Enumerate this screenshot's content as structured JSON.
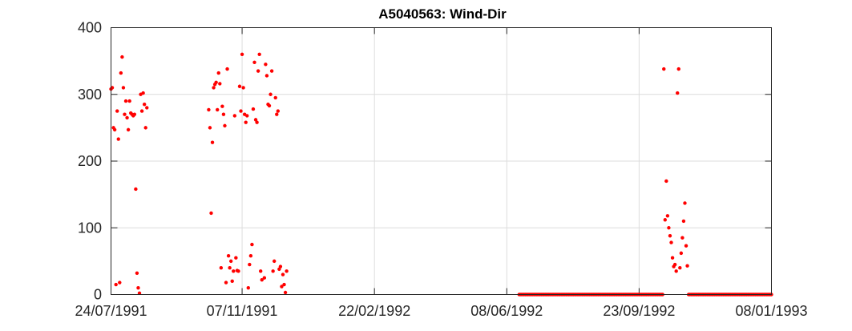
{
  "chart_data": {
    "type": "scatter",
    "title": "A5040563: Wind-Dir",
    "xlabel": "",
    "ylabel": "",
    "x_axis": {
      "type": "date",
      "range": [
        "1991-07-24",
        "1993-01-08"
      ],
      "ticks": [
        "1991-07-24",
        "1991-11-07",
        "1992-02-22",
        "1992-06-08",
        "1992-09-23",
        "1993-01-08"
      ],
      "tick_labels": [
        "24/07/1991",
        "07/11/1991",
        "22/02/1992",
        "08/06/1992",
        "23/09/1992",
        "08/01/1993"
      ]
    },
    "y_axis": {
      "range": [
        0,
        400
      ],
      "ticks": [
        0,
        100,
        200,
        300,
        400
      ],
      "tick_labels": [
        "0",
        "100",
        "200",
        "300",
        "400"
      ]
    },
    "grid": true,
    "marker_color": "#ff0000",
    "series": [
      {
        "points": [
          [
            "1991-07-24",
            308
          ],
          [
            "1991-07-25",
            310
          ],
          [
            "1991-07-26",
            250
          ],
          [
            "1991-07-27",
            247
          ],
          [
            "1991-07-28",
            15
          ],
          [
            "1991-07-29",
            275
          ],
          [
            "1991-07-30",
            233
          ],
          [
            "1991-07-31",
            18
          ],
          [
            "1991-08-01",
            332
          ],
          [
            "1991-08-02",
            356
          ],
          [
            "1991-08-03",
            310
          ],
          [
            "1991-08-04",
            270
          ],
          [
            "1991-08-05",
            290
          ],
          [
            "1991-08-06",
            265
          ],
          [
            "1991-08-07",
            247
          ],
          [
            "1991-08-08",
            290
          ],
          [
            "1991-08-09",
            272
          ],
          [
            "1991-08-10",
            270
          ],
          [
            "1991-08-11",
            268
          ],
          [
            "1991-08-12",
            270
          ],
          [
            "1991-08-13",
            158
          ],
          [
            "1991-08-14",
            32
          ],
          [
            "1991-08-15",
            10
          ],
          [
            "1991-08-16",
            2
          ],
          [
            "1991-08-17",
            300
          ],
          [
            "1991-08-18",
            275
          ],
          [
            "1991-08-19",
            302
          ],
          [
            "1991-08-20",
            285
          ],
          [
            "1991-08-21",
            250
          ],
          [
            "1991-08-22",
            280
          ],
          [
            "1991-10-11",
            277
          ],
          [
            "1991-10-12",
            250
          ],
          [
            "1991-10-13",
            122
          ],
          [
            "1991-10-14",
            228
          ],
          [
            "1991-10-15",
            310
          ],
          [
            "1991-10-16",
            315
          ],
          [
            "1991-10-17",
            318
          ],
          [
            "1991-10-18",
            277
          ],
          [
            "1991-10-19",
            332
          ],
          [
            "1991-10-20",
            316
          ],
          [
            "1991-10-21",
            40
          ],
          [
            "1991-10-22",
            282
          ],
          [
            "1991-10-23",
            270
          ],
          [
            "1991-10-24",
            253
          ],
          [
            "1991-10-25",
            18
          ],
          [
            "1991-10-26",
            338
          ],
          [
            "1991-10-27",
            58
          ],
          [
            "1991-10-28",
            40
          ],
          [
            "1991-10-29",
            50
          ],
          [
            "1991-10-30",
            20
          ],
          [
            "1991-10-31",
            35
          ],
          [
            "1991-11-01",
            268
          ],
          [
            "1991-11-02",
            55
          ],
          [
            "1991-11-03",
            36
          ],
          [
            "1991-11-04",
            35
          ],
          [
            "1991-11-05",
            312
          ],
          [
            "1991-11-06",
            275
          ],
          [
            "1991-11-07",
            360
          ],
          [
            "1991-11-08",
            310
          ],
          [
            "1991-11-09",
            270
          ],
          [
            "1991-11-10",
            258
          ],
          [
            "1991-11-11",
            268
          ],
          [
            "1991-11-12",
            10
          ],
          [
            "1991-11-13",
            45
          ],
          [
            "1991-11-14",
            58
          ],
          [
            "1991-11-15",
            75
          ],
          [
            "1991-11-16",
            278
          ],
          [
            "1991-11-17",
            348
          ],
          [
            "1991-11-18",
            262
          ],
          [
            "1991-11-19",
            258
          ],
          [
            "1991-11-20",
            335
          ],
          [
            "1991-11-21",
            360
          ],
          [
            "1991-11-22",
            35
          ],
          [
            "1991-11-23",
            22
          ],
          [
            "1991-11-25",
            25
          ],
          [
            "1991-11-26",
            345
          ],
          [
            "1991-11-27",
            328
          ],
          [
            "1991-11-28",
            285
          ],
          [
            "1991-11-29",
            283
          ],
          [
            "1991-11-30",
            300
          ],
          [
            "1991-12-01",
            335
          ],
          [
            "1991-12-02",
            35
          ],
          [
            "1991-12-03",
            50
          ],
          [
            "1991-12-04",
            295
          ],
          [
            "1991-12-05",
            270
          ],
          [
            "1991-12-06",
            275
          ],
          [
            "1991-12-07",
            38
          ],
          [
            "1991-12-08",
            42
          ],
          [
            "1991-12-09",
            12
          ],
          [
            "1991-12-10",
            30
          ],
          [
            "1991-12-11",
            15
          ],
          [
            "1991-12-12",
            3
          ],
          [
            "1991-12-13",
            35
          ],
          [
            "1992-10-13",
            338
          ],
          [
            "1992-10-14",
            112
          ],
          [
            "1992-10-15",
            170
          ],
          [
            "1992-10-16",
            118
          ],
          [
            "1992-10-17",
            100
          ],
          [
            "1992-10-18",
            88
          ],
          [
            "1992-10-19",
            78
          ],
          [
            "1992-10-20",
            55
          ],
          [
            "1992-10-21",
            42
          ],
          [
            "1992-10-22",
            45
          ],
          [
            "1992-10-23",
            35
          ],
          [
            "1992-10-24",
            302
          ],
          [
            "1992-10-25",
            338
          ],
          [
            "1992-10-26",
            40
          ],
          [
            "1992-10-27",
            62
          ],
          [
            "1992-10-28",
            85
          ],
          [
            "1992-10-29",
            110
          ],
          [
            "1992-10-30",
            137
          ],
          [
            "1992-10-31",
            73
          ],
          [
            "1992-11-01",
            43
          ]
        ],
        "zero_runs": [
          [
            "1992-06-18",
            "1992-10-12"
          ],
          [
            "1992-11-02",
            "1993-01-08"
          ]
        ]
      }
    ]
  }
}
